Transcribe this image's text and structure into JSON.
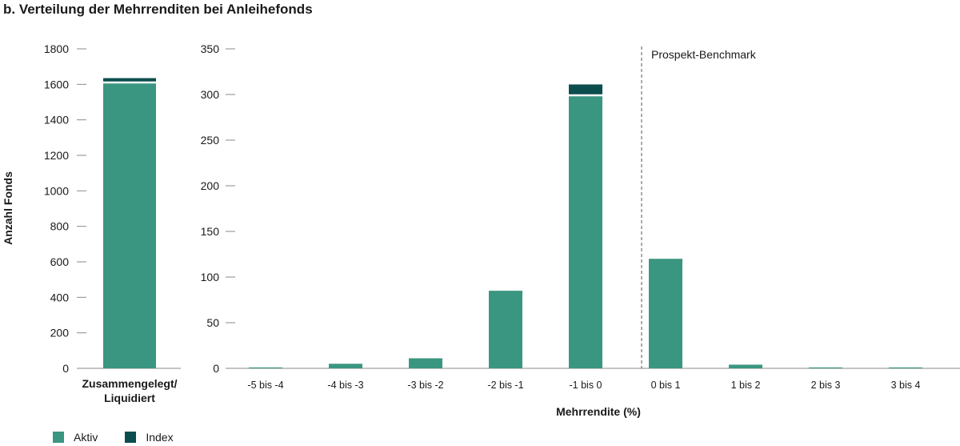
{
  "title": "b. Verteilung der Mehrrenditen bei Anleihefonds",
  "colors": {
    "aktiv": "#3a9680",
    "index": "#0c4d4d",
    "axis": "#8a8a8a",
    "divider": "#555555"
  },
  "legend": {
    "aktiv_label": "Aktiv",
    "index_label": "Index"
  },
  "chart_data": [
    {
      "type": "bar",
      "stacked": true,
      "categories": [
        "Zusammengelegt/ Liquidiert"
      ],
      "category_lines": [
        "Zusammengelegt/",
        "Liquidiert"
      ],
      "series": [
        {
          "name": "Aktiv",
          "values": [
            1605
          ]
        },
        {
          "name": "Index",
          "values": [
            30
          ]
        }
      ],
      "ylabel": "Anzahl Fonds",
      "ylim": [
        0,
        1800
      ],
      "yticks": [
        0,
        200,
        400,
        600,
        800,
        1000,
        1200,
        1400,
        1600,
        1800
      ]
    },
    {
      "type": "bar",
      "stacked": true,
      "categories": [
        "-5 bis -4",
        "-4 bis -3",
        "-3 bis -2",
        "-2 bis -1",
        "-1 bis 0",
        "0 bis 1",
        "1 bis 2",
        "2 bis 3",
        "3 bis 4"
      ],
      "series": [
        {
          "name": "Aktiv",
          "values": [
            1,
            5,
            11,
            85,
            298,
            120,
            4,
            1,
            1
          ]
        },
        {
          "name": "Index",
          "values": [
            0,
            0,
            0,
            0,
            13,
            0,
            0,
            0,
            0
          ]
        }
      ],
      "xlabel": "Mehrrendite (%)",
      "ylim": [
        0,
        350
      ],
      "yticks": [
        0,
        50,
        100,
        150,
        200,
        250,
        300,
        350
      ],
      "annotation": {
        "text": "Prospekt-Benchmark",
        "at": "between -1 bis 0 and 0 bis 1"
      }
    }
  ]
}
